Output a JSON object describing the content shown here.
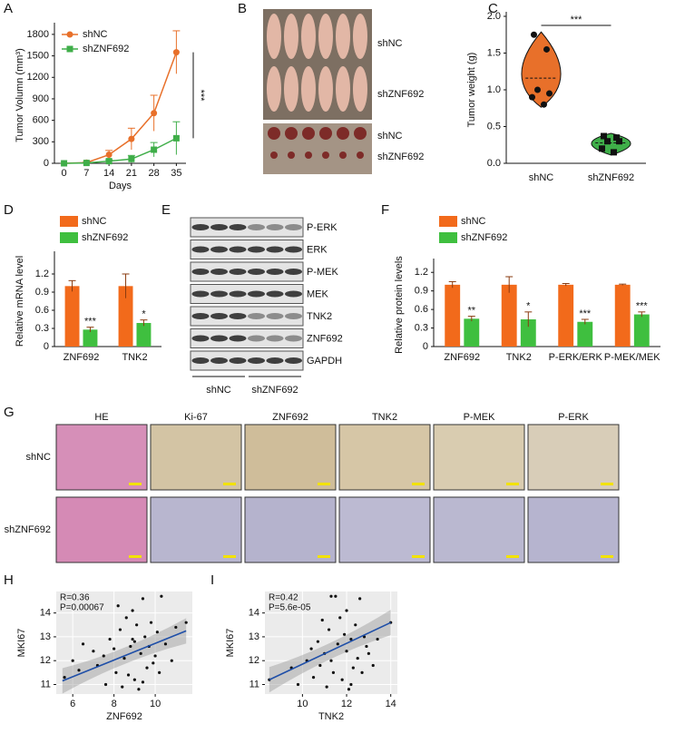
{
  "chart_data": [
    {
      "panel": "A",
      "type": "line",
      "xlabel": "Days",
      "ylabel": "Tumor Volumn (mm³)",
      "x": [
        0,
        7,
        14,
        21,
        28,
        35
      ],
      "xlim": [
        -3,
        38
      ],
      "xticks": [
        0,
        7,
        14,
        21,
        28,
        35
      ],
      "ylim": [
        0,
        1900
      ],
      "yticks": [
        0,
        300,
        600,
        900,
        1200,
        1500,
        1800
      ],
      "series": [
        {
          "name": "shNC",
          "color": "#e8702a",
          "marker": "circle",
          "values": [
            0,
            10,
            120,
            340,
            700,
            1550
          ],
          "errors": [
            0,
            10,
            60,
            150,
            250,
            300
          ]
        },
        {
          "name": "shZNF692",
          "color": "#3fae49",
          "marker": "square",
          "values": [
            0,
            5,
            30,
            60,
            190,
            350
          ],
          "errors": [
            0,
            5,
            20,
            50,
            100,
            230
          ]
        }
      ],
      "annotations": [
        "***"
      ]
    },
    {
      "panel": "C",
      "type": "violin",
      "ylabel": "Tumor weight (g)",
      "categories": [
        "shNC",
        "shZNF692"
      ],
      "ylim": [
        0,
        2
      ],
      "yticks": [
        {
          "value": 0,
          "label": "0.0"
        },
        0.5,
        {
          "value": 1,
          "label": "1.0"
        },
        1.5,
        {
          "value": 2,
          "label": "2.0"
        }
      ],
      "groups": [
        {
          "color": "#e8702a",
          "marker": "circle",
          "values": [
            1.75,
            1.55,
            1.0,
            0.95,
            0.9,
            0.8
          ]
        },
        {
          "color": "#3fae49",
          "marker": "square",
          "values": [
            0.37,
            0.35,
            0.3,
            0.3,
            0.2,
            0.15
          ]
        }
      ],
      "annotations": [
        "***"
      ]
    },
    {
      "panel": "D",
      "type": "bar",
      "ylabel": "Relative mRNA level",
      "categories": [
        "ZNF692",
        "TNK2"
      ],
      "ylim": [
        0,
        1.5
      ],
      "yticks": [
        0,
        0.3,
        0.6,
        0.9,
        1.2
      ],
      "series": [
        {
          "name": "shNC",
          "color": "#f26a1b",
          "values": [
            1.0,
            1.0
          ],
          "errors": [
            0.09,
            0.2
          ]
        },
        {
          "name": "shZNF692",
          "color": "#3fbf3f",
          "values": [
            0.28,
            0.39
          ],
          "errors": [
            0.04,
            0.05
          ],
          "significance": [
            "***",
            "*"
          ]
        }
      ]
    },
    {
      "panel": "F",
      "type": "bar",
      "ylabel": "Relative protein levels",
      "categories": [
        "ZNF692",
        "TNK2",
        "P-ERK/ERK",
        "P-MEK/MEK"
      ],
      "ylim": [
        0,
        1.35
      ],
      "yticks": [
        0,
        0.3,
        0.6,
        0.9,
        1.2
      ],
      "series": [
        {
          "name": "shNC",
          "color": "#f26a1b",
          "values": [
            1.0,
            1.0,
            1.0,
            1.0
          ],
          "errors": [
            0.05,
            0.13,
            0.02,
            0.01
          ]
        },
        {
          "name": "shZNF692",
          "color": "#3fbf3f",
          "values": [
            0.45,
            0.44,
            0.4,
            0.52
          ],
          "errors": [
            0.04,
            0.12,
            0.04,
            0.04
          ],
          "significance": [
            "**",
            "*",
            "***",
            "***"
          ]
        }
      ]
    },
    {
      "panel": "H",
      "type": "scatter",
      "grid": true,
      "xlabel": "ZNF692",
      "ylabel": "MKI67",
      "xlim": [
        5.2,
        11.8
      ],
      "xticks": [
        6,
        8,
        10
      ],
      "ylim": [
        10.6,
        14.9
      ],
      "yticks": [
        11,
        12,
        13,
        14
      ],
      "x": [
        5.6,
        6.0,
        6.3,
        6.5,
        7.0,
        7.2,
        7.5,
        7.6,
        7.8,
        8.0,
        8.1,
        8.3,
        8.4,
        8.5,
        8.6,
        8.7,
        8.8,
        8.9,
        9.0,
        9.0,
        9.1,
        9.2,
        9.3,
        9.4,
        9.5,
        9.6,
        9.7,
        9.8,
        9.9,
        10.0,
        10.1,
        10.3,
        10.5,
        10.8,
        11.0,
        11.5,
        8.2,
        9.4,
        10.2,
        8.9
      ],
      "values": [
        11.3,
        12.0,
        11.6,
        12.7,
        12.4,
        11.8,
        12.2,
        11.0,
        12.9,
        12.5,
        11.5,
        13.3,
        10.9,
        12.1,
        13.8,
        11.4,
        12.6,
        14.1,
        12.8,
        11.2,
        13.5,
        10.8,
        12.3,
        14.6,
        13.0,
        11.7,
        12.6,
        13.6,
        11.9,
        12.2,
        13.2,
        14.7,
        12.7,
        12.0,
        13.4,
        13.6,
        14.3,
        11.1,
        11.5,
        12.9
      ],
      "fit": {
        "x": [
          5.5,
          11.5
        ],
        "y": [
          11.15,
          13.25
        ]
      },
      "annotations": [
        "R=0.36",
        "P=0.00067"
      ]
    },
    {
      "panel": "I",
      "type": "scatter",
      "grid": true,
      "xlabel": "TNK2",
      "ylabel": "MKI67",
      "xlim": [
        8.3,
        14.3
      ],
      "xticks": [
        10,
        12,
        14
      ],
      "ylim": [
        10.6,
        14.9
      ],
      "yticks": [
        11,
        12,
        13,
        14
      ],
      "x": [
        8.5,
        9.5,
        9.8,
        10.2,
        10.4,
        10.5,
        10.7,
        10.8,
        11.0,
        11.1,
        11.2,
        11.3,
        11.4,
        11.5,
        11.6,
        11.7,
        11.8,
        11.9,
        12.0,
        12.0,
        12.1,
        12.2,
        12.3,
        12.4,
        12.5,
        12.6,
        12.7,
        12.8,
        12.9,
        13.0,
        13.2,
        13.4,
        14.0,
        11.3,
        10.9,
        12.2
      ],
      "values": [
        11.2,
        11.7,
        11.0,
        12.0,
        12.5,
        11.3,
        12.8,
        11.8,
        12.3,
        10.9,
        13.3,
        12.0,
        11.5,
        14.7,
        12.7,
        13.8,
        11.2,
        13.1,
        12.4,
        14.1,
        10.8,
        12.9,
        11.7,
        13.5,
        12.1,
        14.6,
        11.5,
        13.0,
        12.6,
        12.3,
        11.8,
        12.9,
        13.6,
        14.7,
        13.7,
        11.0
      ],
      "fit": {
        "x": [
          8.5,
          14.0
        ],
        "y": [
          11.2,
          13.6
        ]
      },
      "annotations": [
        "R=0.42",
        "P=5.6e-05"
      ]
    }
  ],
  "figures": {
    "B": {
      "panel": "B",
      "labels": [
        "shNC",
        "shZNF692",
        "shNC",
        "shZNF692"
      ]
    },
    "E": {
      "panel": "E",
      "bands": [
        "P-ERK",
        "ERK",
        "P-MEK",
        "MEK",
        "TNK2",
        "ZNF692",
        "GAPDH"
      ],
      "groups": [
        "shNC",
        "shZNF692"
      ]
    },
    "G": {
      "panel": "G",
      "columns": [
        "HE",
        "Ki-67",
        "ZNF692",
        "TNK2",
        "P-MEK",
        "P-ERK"
      ],
      "rows": [
        "shNC",
        "shZNF692"
      ]
    }
  }
}
